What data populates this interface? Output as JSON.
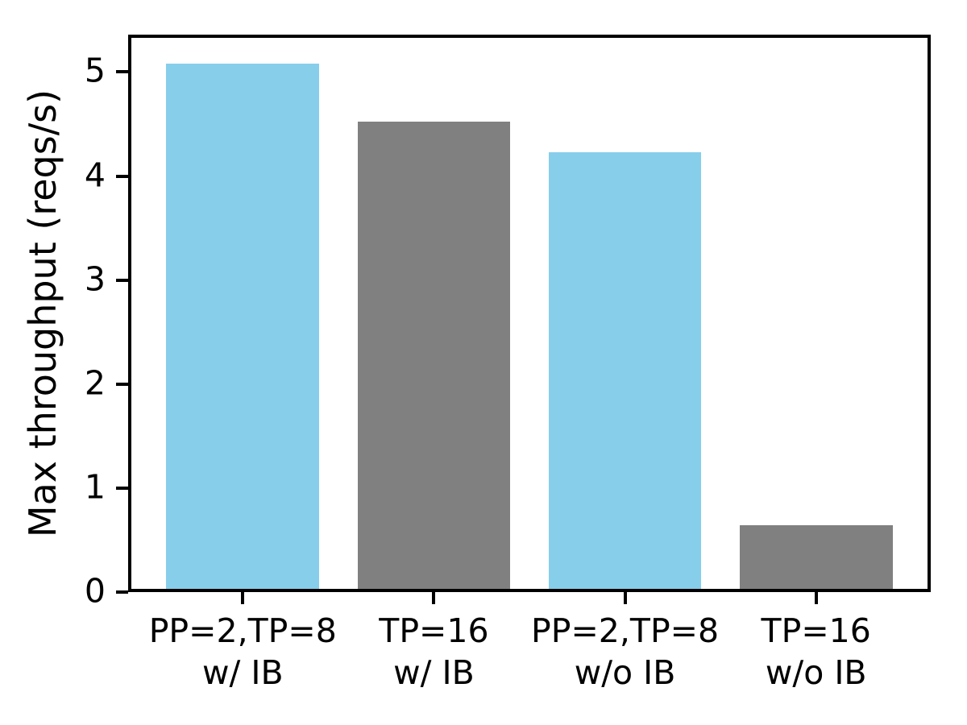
{
  "figure": {
    "background": "#ffffff",
    "text_color": "#000000"
  },
  "chart_data": {
    "type": "bar",
    "title": "",
    "xlabel": "",
    "ylabel": "Max throughput (reqs/s)",
    "categories": [
      "PP=2,TP=8\nw/ IB",
      "TP=16\nw/ IB",
      "PP=2,TP=8\nw/o IB",
      "TP=16\nw/o IB"
    ],
    "values": [
      5.08,
      4.52,
      4.23,
      0.64
    ],
    "bar_colors": [
      "#87ceeb",
      "#808080",
      "#87ceeb",
      "#808080"
    ],
    "bar_width": 0.8,
    "yticks": [
      0,
      1,
      2,
      3,
      4,
      5
    ],
    "ylim": [
      0,
      5.36
    ],
    "xlim": [
      -0.6,
      3.6
    ],
    "grid": false,
    "legend": null,
    "axis_color": "#000000"
  }
}
